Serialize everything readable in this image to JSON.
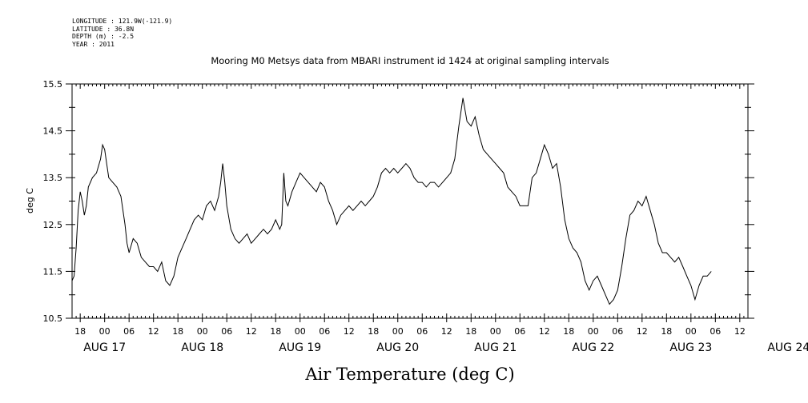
{
  "header": {
    "longitude": "LONGITUDE : 121.9W(-121.9)",
    "latitude": "LATITUDE : 36.8N",
    "depth": "DEPTH (m) : -2.5",
    "year": "YEAR : 2011"
  },
  "chart_data": {
    "type": "line",
    "title": "Mooring M0 Metsys data from MBARI instrument id 1424 at original sampling intervals",
    "variable_label": "Air Temperature (deg C)",
    "ylabel": "deg C",
    "ylim": [
      10.5,
      15.5
    ],
    "y_ticks": [
      "10.5",
      "11.5",
      "12.5",
      "13.5",
      "14.5",
      "15.5"
    ],
    "x_range_hours": [
      -8,
      158
    ],
    "x_tick_labels": [
      "18",
      "00",
      "06",
      "12",
      "18",
      "00",
      "06",
      "12",
      "18",
      "00",
      "06",
      "12",
      "18",
      "00",
      "06",
      "12",
      "18",
      "00",
      "06",
      "12",
      "18",
      "00",
      "06",
      "12",
      "18",
      "00",
      "06",
      "12"
    ],
    "day_labels": [
      "AUG 17",
      "AUG 18",
      "AUG 19",
      "AUG 20",
      "AUG 21",
      "AUG 22",
      "AUG 23",
      "AUG 24"
    ],
    "series": [
      {
        "points": [
          [
            -8,
            11.3
          ],
          [
            -7.5,
            11.4
          ],
          [
            -7,
            12.0
          ],
          [
            -6.5,
            12.8
          ],
          [
            -6,
            13.2
          ],
          [
            -5.5,
            13.0
          ],
          [
            -5,
            12.7
          ],
          [
            -4.5,
            12.9
          ],
          [
            -4,
            13.3
          ],
          [
            -3,
            13.5
          ],
          [
            -2,
            13.6
          ],
          [
            -1,
            13.9
          ],
          [
            -0.5,
            14.2
          ],
          [
            0,
            14.1
          ],
          [
            0.5,
            13.8
          ],
          [
            1,
            13.5
          ],
          [
            2,
            13.4
          ],
          [
            3,
            13.3
          ],
          [
            4,
            13.1
          ],
          [
            5,
            12.5
          ],
          [
            5.5,
            12.1
          ],
          [
            6,
            11.9
          ],
          [
            7,
            12.2
          ],
          [
            8,
            12.1
          ],
          [
            9,
            11.8
          ],
          [
            10,
            11.7
          ],
          [
            11,
            11.6
          ],
          [
            12,
            11.6
          ],
          [
            13,
            11.5
          ],
          [
            14,
            11.7
          ],
          [
            15,
            11.3
          ],
          [
            16,
            11.2
          ],
          [
            17,
            11.4
          ],
          [
            18,
            11.8
          ],
          [
            19,
            12.0
          ],
          [
            20,
            12.2
          ],
          [
            21,
            12.4
          ],
          [
            22,
            12.6
          ],
          [
            23,
            12.7
          ],
          [
            24,
            12.6
          ],
          [
            25,
            12.9
          ],
          [
            26,
            13.0
          ],
          [
            27,
            12.8
          ],
          [
            28,
            13.1
          ],
          [
            28.5,
            13.4
          ],
          [
            29,
            13.8
          ],
          [
            29.5,
            13.4
          ],
          [
            30,
            12.9
          ],
          [
            31,
            12.4
          ],
          [
            32,
            12.2
          ],
          [
            33,
            12.1
          ],
          [
            34,
            12.2
          ],
          [
            35,
            12.3
          ],
          [
            36,
            12.1
          ],
          [
            37,
            12.2
          ],
          [
            38,
            12.3
          ],
          [
            39,
            12.4
          ],
          [
            40,
            12.3
          ],
          [
            41,
            12.4
          ],
          [
            42,
            12.6
          ],
          [
            43,
            12.4
          ],
          [
            43.5,
            12.5
          ],
          [
            44,
            13.6
          ],
          [
            44.5,
            13.0
          ],
          [
            45,
            12.9
          ],
          [
            46,
            13.2
          ],
          [
            47,
            13.4
          ],
          [
            48,
            13.6
          ],
          [
            49,
            13.5
          ],
          [
            50,
            13.4
          ],
          [
            51,
            13.3
          ],
          [
            52,
            13.2
          ],
          [
            53,
            13.4
          ],
          [
            54,
            13.3
          ],
          [
            55,
            13.0
          ],
          [
            56,
            12.8
          ],
          [
            57,
            12.5
          ],
          [
            58,
            12.7
          ],
          [
            59,
            12.8
          ],
          [
            60,
            12.9
          ],
          [
            61,
            12.8
          ],
          [
            62,
            12.9
          ],
          [
            63,
            13.0
          ],
          [
            64,
            12.9
          ],
          [
            65,
            13.0
          ],
          [
            66,
            13.1
          ],
          [
            67,
            13.3
          ],
          [
            68,
            13.6
          ],
          [
            69,
            13.7
          ],
          [
            70,
            13.6
          ],
          [
            71,
            13.7
          ],
          [
            72,
            13.6
          ],
          [
            73,
            13.7
          ],
          [
            74,
            13.8
          ],
          [
            75,
            13.7
          ],
          [
            76,
            13.5
          ],
          [
            77,
            13.4
          ],
          [
            78,
            13.4
          ],
          [
            79,
            13.3
          ],
          [
            80,
            13.4
          ],
          [
            81,
            13.4
          ],
          [
            82,
            13.3
          ],
          [
            83,
            13.4
          ],
          [
            84,
            13.5
          ],
          [
            85,
            13.6
          ],
          [
            86,
            13.9
          ],
          [
            87,
            14.6
          ],
          [
            88,
            15.2
          ],
          [
            89,
            14.7
          ],
          [
            90,
            14.6
          ],
          [
            91,
            14.8
          ],
          [
            92,
            14.4
          ],
          [
            93,
            14.1
          ],
          [
            94,
            14.0
          ],
          [
            95,
            13.9
          ],
          [
            96,
            13.8
          ],
          [
            97,
            13.7
          ],
          [
            98,
            13.6
          ],
          [
            99,
            13.3
          ],
          [
            100,
            13.2
          ],
          [
            101,
            13.1
          ],
          [
            102,
            12.9
          ],
          [
            103,
            12.9
          ],
          [
            104,
            12.9
          ],
          [
            105,
            13.5
          ],
          [
            106,
            13.6
          ],
          [
            107,
            13.9
          ],
          [
            108,
            14.2
          ],
          [
            109,
            14.0
          ],
          [
            110,
            13.7
          ],
          [
            111,
            13.8
          ],
          [
            112,
            13.3
          ],
          [
            113,
            12.6
          ],
          [
            114,
            12.2
          ],
          [
            115,
            12.0
          ],
          [
            116,
            11.9
          ],
          [
            117,
            11.7
          ],
          [
            118,
            11.3
          ],
          [
            119,
            11.1
          ],
          [
            120,
            11.3
          ],
          [
            121,
            11.4
          ],
          [
            122,
            11.2
          ],
          [
            123,
            11.0
          ],
          [
            124,
            10.8
          ],
          [
            125,
            10.9
          ],
          [
            126,
            11.1
          ],
          [
            127,
            11.6
          ],
          [
            128,
            12.2
          ],
          [
            129,
            12.7
          ],
          [
            130,
            12.8
          ],
          [
            131,
            13.0
          ],
          [
            132,
            12.9
          ],
          [
            133,
            13.1
          ],
          [
            134,
            12.8
          ],
          [
            135,
            12.5
          ],
          [
            136,
            12.1
          ],
          [
            137,
            11.9
          ],
          [
            138,
            11.9
          ],
          [
            139,
            11.8
          ],
          [
            140,
            11.7
          ],
          [
            141,
            11.8
          ],
          [
            142,
            11.6
          ],
          [
            143,
            11.4
          ],
          [
            144,
            11.2
          ],
          [
            145,
            10.9
          ],
          [
            146,
            11.2
          ],
          [
            147,
            11.4
          ],
          [
            148,
            11.4
          ],
          [
            149,
            11.5
          ]
        ]
      }
    ]
  }
}
